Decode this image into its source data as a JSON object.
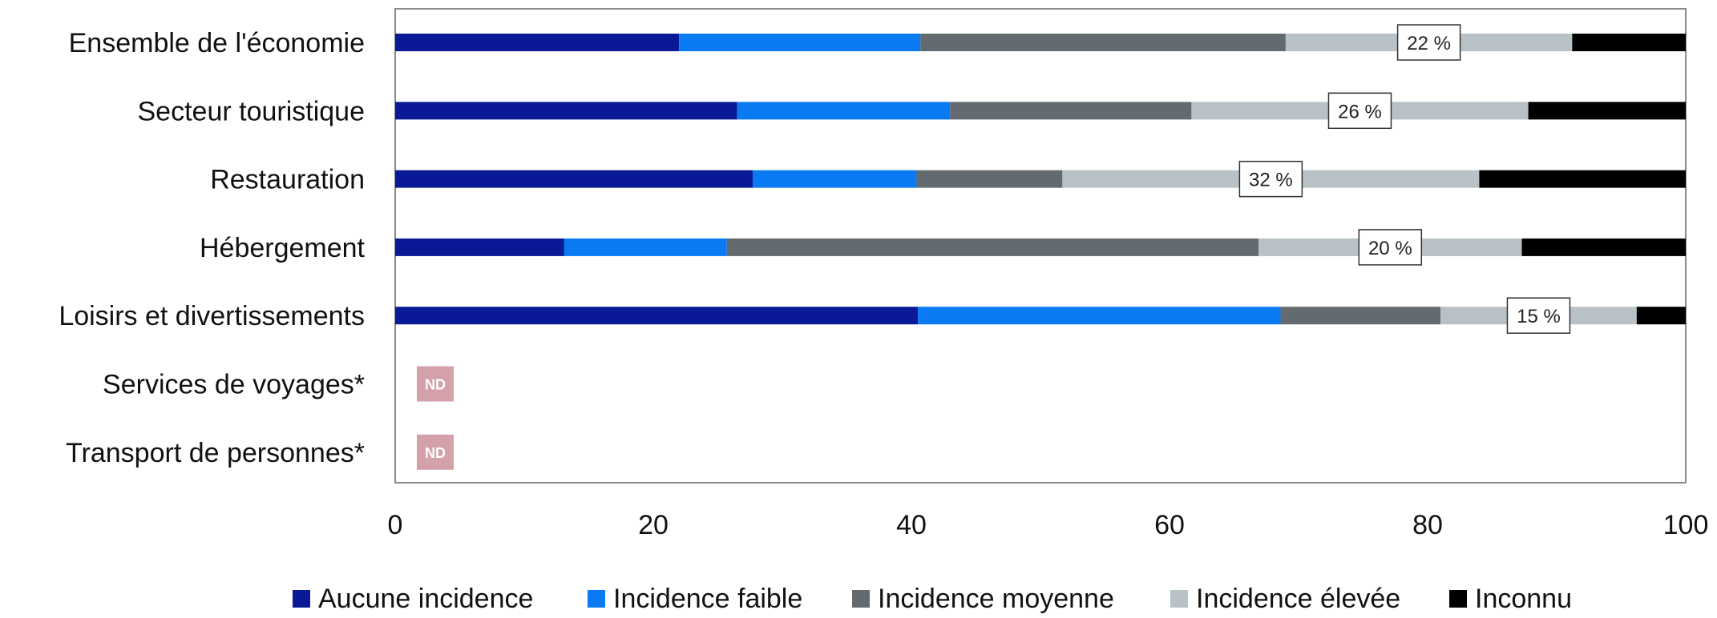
{
  "chart_data": {
    "type": "bar",
    "orientation": "horizontal",
    "stacked": true,
    "categories": [
      "Ensemble de l'économie",
      "Secteur touristique",
      "Restauration",
      "Hébergement",
      "Loisirs et divertissements",
      "Services de voyages*",
      "Transport de personnes*"
    ],
    "series": [
      {
        "name": "Aucune incidence",
        "color": "#0a1a96",
        "values": [
          22,
          26.5,
          27.7,
          13.1,
          40.5,
          null,
          null
        ]
      },
      {
        "name": "Incidence faible",
        "color": "#0a7af2",
        "values": [
          18.7,
          16.5,
          12.7,
          12.6,
          28.1,
          null,
          null
        ]
      },
      {
        "name": "Incidence moyenne",
        "color": "#636b70",
        "values": [
          28.3,
          18.7,
          11.3,
          41.2,
          12.4,
          null,
          null
        ]
      },
      {
        "name": "Incidence élevée",
        "color": "#b8c1c6",
        "values": [
          22.2,
          26.1,
          32.3,
          20.4,
          15.2,
          null,
          null
        ]
      },
      {
        "name": "Inconnu",
        "color": "#000000",
        "values": [
          8.8,
          12.2,
          16.0,
          12.7,
          3.8,
          null,
          null
        ]
      }
    ],
    "data_labels": [
      "22 %",
      "26 %",
      "32 %",
      "20 %",
      "15 %",
      "ND",
      "ND"
    ],
    "nd_color": "#d4a1ab",
    "x_ticks": [
      "0",
      "20",
      "40",
      "60",
      "80",
      "100"
    ],
    "xlim": [
      0,
      100
    ],
    "grid": false,
    "legend_position": "bottom"
  }
}
